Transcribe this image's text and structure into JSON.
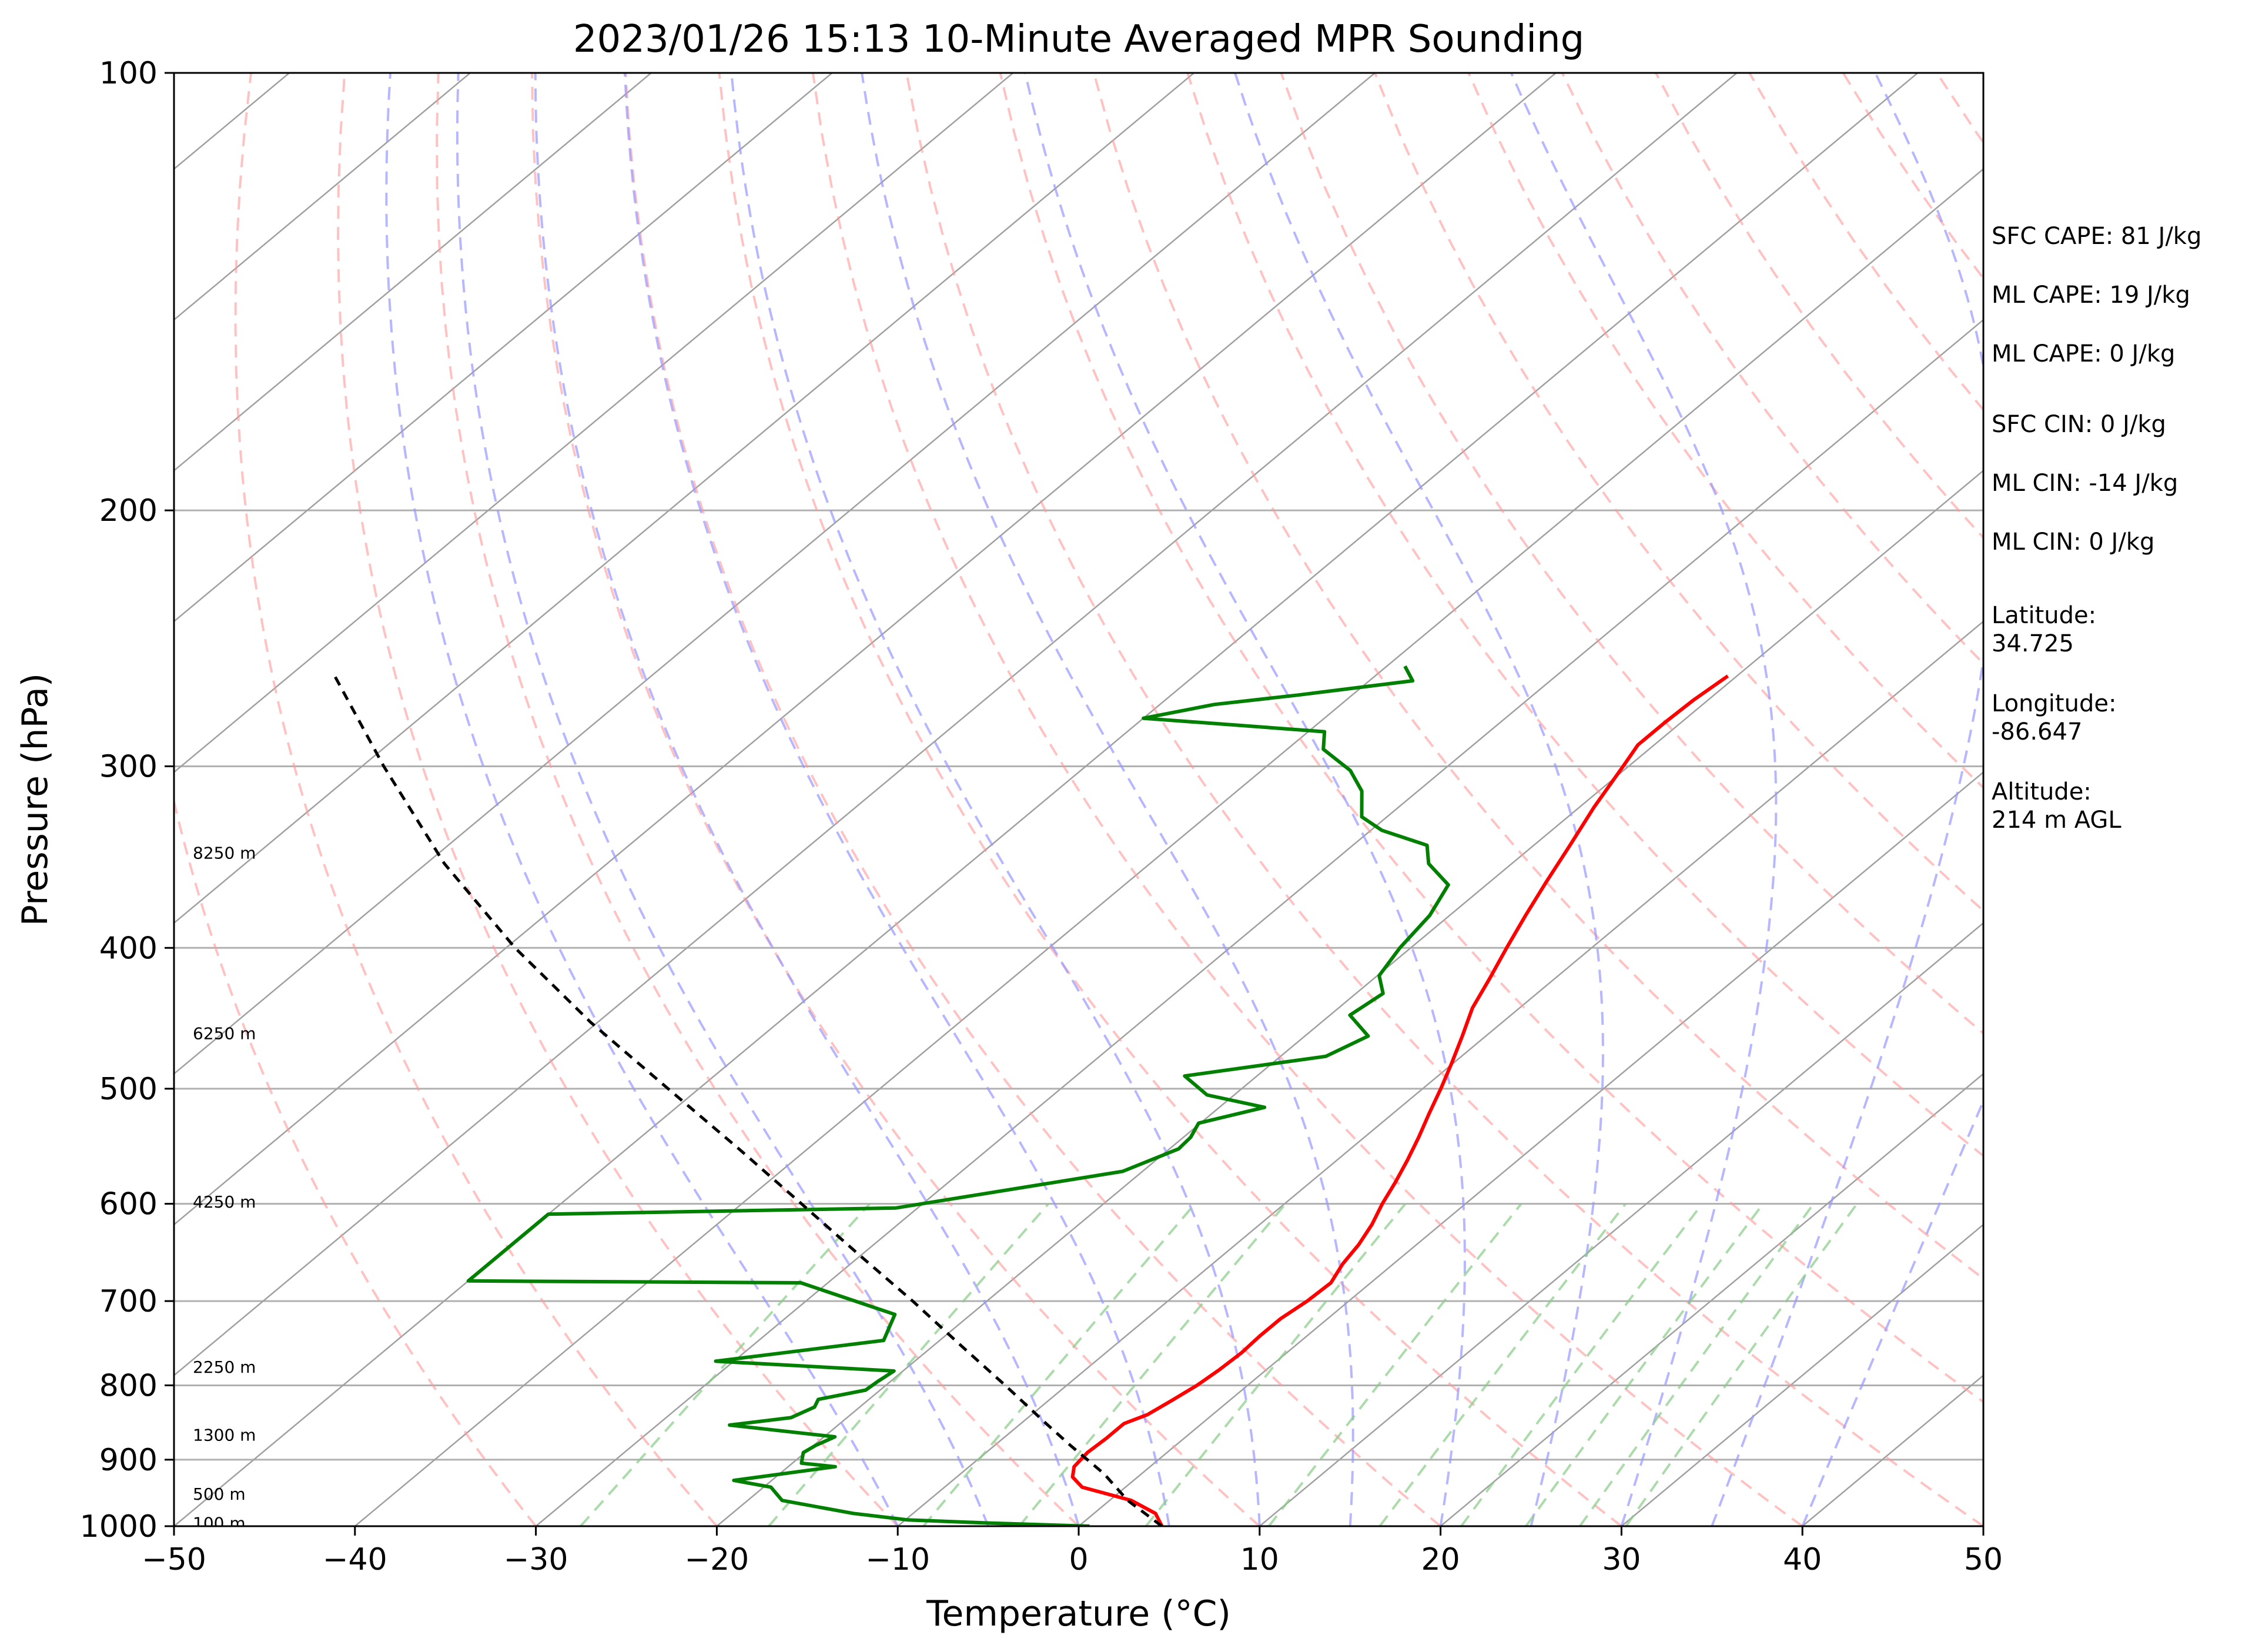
{
  "chart_data": {
    "type": "skew-t",
    "title": "2023/01/26 15:13 10-Minute Averaged MPR Sounding",
    "xlabel": "Temperature (°C)",
    "ylabel": "Pressure (hPa)",
    "xlim": [
      -50,
      50
    ],
    "ylim": [
      1000,
      100
    ],
    "y_scale": "log",
    "x_ticks": [
      "−50",
      "−40",
      "−30",
      "−20",
      "−10",
      "0",
      "10",
      "20",
      "30",
      "40",
      "50"
    ],
    "y_ticks": [
      "100",
      "200",
      "300",
      "400",
      "500",
      "600",
      "700",
      "800",
      "900",
      "1000"
    ],
    "grid": true,
    "colors": {
      "temperature": "#ff0000",
      "dewpoint": "#008000",
      "parcel": "#000000",
      "isotherm": "#a0a0a0",
      "dry_adiabat": "#ff9999",
      "moist_adiabat": "#9999ff",
      "mixing_ratio": "#88cc88"
    },
    "series": [
      {
        "key": "temperature",
        "points": [
          [
            1000,
            4.6
          ],
          [
            980,
            3.4
          ],
          [
            960,
            1.2
          ],
          [
            940,
            -2.4
          ],
          [
            925,
            -3.6
          ],
          [
            910,
            -4.2
          ],
          [
            890,
            -4.4
          ],
          [
            870,
            -4.3
          ],
          [
            850,
            -4.3
          ],
          [
            838,
            -3.6
          ],
          [
            820,
            -3.2
          ],
          [
            800,
            -2.8
          ],
          [
            780,
            -2.6
          ],
          [
            760,
            -2.5
          ],
          [
            740,
            -2.6
          ],
          [
            720,
            -2.6
          ],
          [
            700,
            -2.3
          ],
          [
            680,
            -2.2
          ],
          [
            660,
            -2.8
          ],
          [
            640,
            -3.2
          ],
          [
            620,
            -3.8
          ],
          [
            600,
            -4.6
          ],
          [
            580,
            -5.3
          ],
          [
            560,
            -6.1
          ],
          [
            540,
            -7.0
          ],
          [
            520,
            -8.0
          ],
          [
            500,
            -9.0
          ],
          [
            480,
            -10.1
          ],
          [
            460,
            -11.3
          ],
          [
            440,
            -12.6
          ],
          [
            420,
            -13.6
          ],
          [
            400,
            -14.7
          ],
          [
            380,
            -15.8
          ],
          [
            360,
            -16.9
          ],
          [
            340,
            -18.0
          ],
          [
            320,
            -19.2
          ],
          [
            300,
            -20.3
          ],
          [
            290,
            -20.9
          ],
          [
            280,
            -20.9
          ],
          [
            270,
            -20.8
          ],
          [
            260,
            -20.5
          ]
        ]
      },
      {
        "key": "dewpoint",
        "points": [
          [
            1000,
            0.6
          ],
          [
            995,
            -5.2
          ],
          [
            990,
            -9.9
          ],
          [
            980,
            -13.3
          ],
          [
            960,
            -18.1
          ],
          [
            940,
            -19.6
          ],
          [
            930,
            -22.1
          ],
          [
            910,
            -17.4
          ],
          [
            905,
            -19.5
          ],
          [
            890,
            -20.1
          ],
          [
            880,
            -19.9
          ],
          [
            868,
            -19.4
          ],
          [
            852,
            -26.0
          ],
          [
            842,
            -23.1
          ],
          [
            828,
            -22.5
          ],
          [
            818,
            -22.8
          ],
          [
            806,
            -20.8
          ],
          [
            795,
            -20.7
          ],
          [
            782,
            -20.5
          ],
          [
            770,
            -31.0
          ],
          [
            745,
            -23.1
          ],
          [
            715,
            -24.2
          ],
          [
            680,
            -31.5
          ],
          [
            678,
            -50.0
          ],
          [
            610,
            -50.0
          ],
          [
            604,
            -31.2
          ],
          [
            570,
            -21.1
          ],
          [
            550,
            -19.5
          ],
          [
            540,
            -19.6
          ],
          [
            528,
            -20.1
          ],
          [
            515,
            -17.5
          ],
          [
            505,
            -21.5
          ],
          [
            490,
            -24.0
          ],
          [
            475,
            -17.5
          ],
          [
            460,
            -16.5
          ],
          [
            445,
            -18.9
          ],
          [
            430,
            -18.5
          ],
          [
            418,
            -19.9
          ],
          [
            400,
            -20.6
          ],
          [
            380,
            -21.1
          ],
          [
            362,
            -22.1
          ],
          [
            350,
            -24.6
          ],
          [
            340,
            -25.9
          ],
          [
            332,
            -29.4
          ],
          [
            325,
            -31.4
          ],
          [
            312,
            -33.1
          ],
          [
            302,
            -35.1
          ],
          [
            292,
            -38.0
          ],
          [
            284,
            -39.1
          ],
          [
            278,
            -50.0
          ],
          [
            272,
            -47.0
          ],
          [
            268,
            -43.0
          ],
          [
            262,
            -37.6
          ],
          [
            256,
            -39.0
          ]
        ]
      },
      {
        "key": "parcel",
        "points": [
          [
            1000,
            4.6
          ],
          [
            960,
            1.0
          ],
          [
            920,
            -2.1
          ],
          [
            880,
            -5.8
          ],
          [
            850,
            -8.6
          ],
          [
            800,
            -13.4
          ],
          [
            750,
            -18.6
          ],
          [
            700,
            -24.1
          ],
          [
            650,
            -30.2
          ],
          [
            600,
            -36.7
          ],
          [
            550,
            -43.8
          ],
          [
            500,
            -51.7
          ],
          [
            450,
            -60.4
          ],
          [
            400,
            -69.5
          ],
          [
            350,
            -79.0
          ],
          [
            300,
            -88.8
          ],
          [
            260,
            -97.5
          ]
        ]
      }
    ],
    "height_labels": [
      {
        "label": "100 m",
        "p": 995
      },
      {
        "label": "500 m",
        "p": 950
      },
      {
        "label": "1300 m",
        "p": 865
      },
      {
        "label": "2250 m",
        "p": 777
      },
      {
        "label": "4250 m",
        "p": 598
      },
      {
        "label": "6250 m",
        "p": 458
      },
      {
        "label": "8250 m",
        "p": 344
      }
    ],
    "side_annotations": [
      [
        "SFC CAPE: 81 J/kg"
      ],
      [
        "ML CAPE: 19 J/kg"
      ],
      [
        "ML CAPE: 0 J/kg"
      ],
      [
        "SFC CIN: 0 J/kg"
      ],
      [
        "ML CIN: -14 J/kg"
      ],
      [
        "ML CIN: 0 J/kg"
      ],
      [
        "Latitude:",
        "34.725"
      ],
      [
        "Longitude:",
        "-86.647"
      ],
      [
        "Altitude:",
        "214 m AGL"
      ]
    ]
  }
}
